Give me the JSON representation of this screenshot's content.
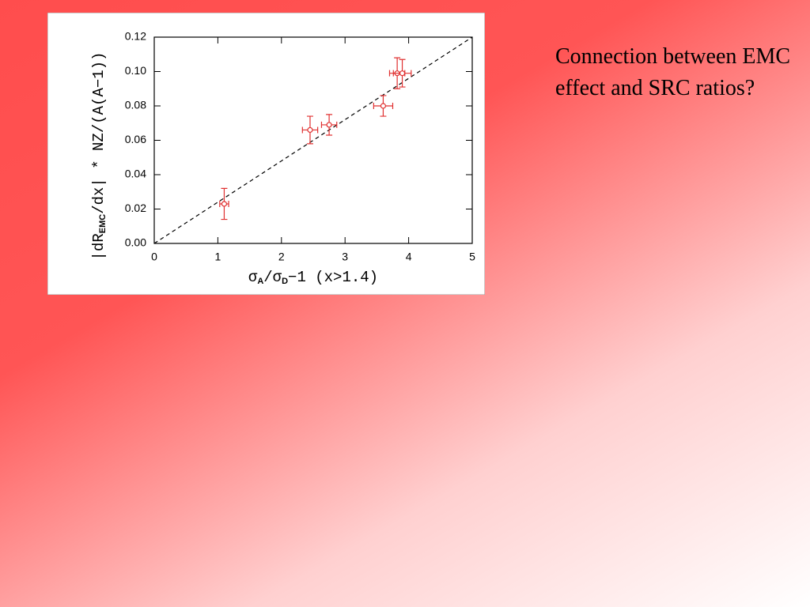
{
  "slide": {
    "text": "Connection between EMC effect and SRC ratios?"
  },
  "chart_data": {
    "type": "scatter",
    "xlabel": [
      "σ",
      "A",
      "/σ",
      "D",
      "−1  (x>1.4)"
    ],
    "ylabel": [
      "|dR",
      "EMC",
      "/dx|  *  NZ/(A(A−1))"
    ],
    "xlim": [
      0,
      5
    ],
    "xticks": [
      0,
      1,
      2,
      3,
      4,
      5
    ],
    "ylim": [
      0,
      0.12
    ],
    "yticks": [
      {
        "value": 0,
        "label": "0.00"
      },
      {
        "value": 0.02,
        "label": "0.02"
      },
      {
        "value": 0.04,
        "label": "0.04"
      },
      {
        "value": 0.06,
        "label": "0.06"
      },
      {
        "value": 0.08,
        "label": "0.08"
      },
      {
        "value": 0.1,
        "label": "0.10"
      },
      {
        "value": 0.12,
        "label": "0.12"
      }
    ],
    "series": [
      {
        "color": "#e03030",
        "x": [
          1.1,
          2.45,
          2.75,
          3.6,
          3.82,
          3.9
        ],
        "xerr": [
          0.07,
          0.12,
          0.12,
          0.15,
          0.12,
          0.14
        ],
        "y": [
          0.023,
          0.066,
          0.069,
          0.08,
          0.099,
          0.099
        ],
        "yerr": [
          0.009,
          0.008,
          0.006,
          0.006,
          0.009,
          0.008
        ]
      }
    ],
    "fit_line": {
      "x": [
        0,
        5
      ],
      "y": [
        0,
        0.12
      ],
      "color": "#000000",
      "dashed": true
    }
  }
}
